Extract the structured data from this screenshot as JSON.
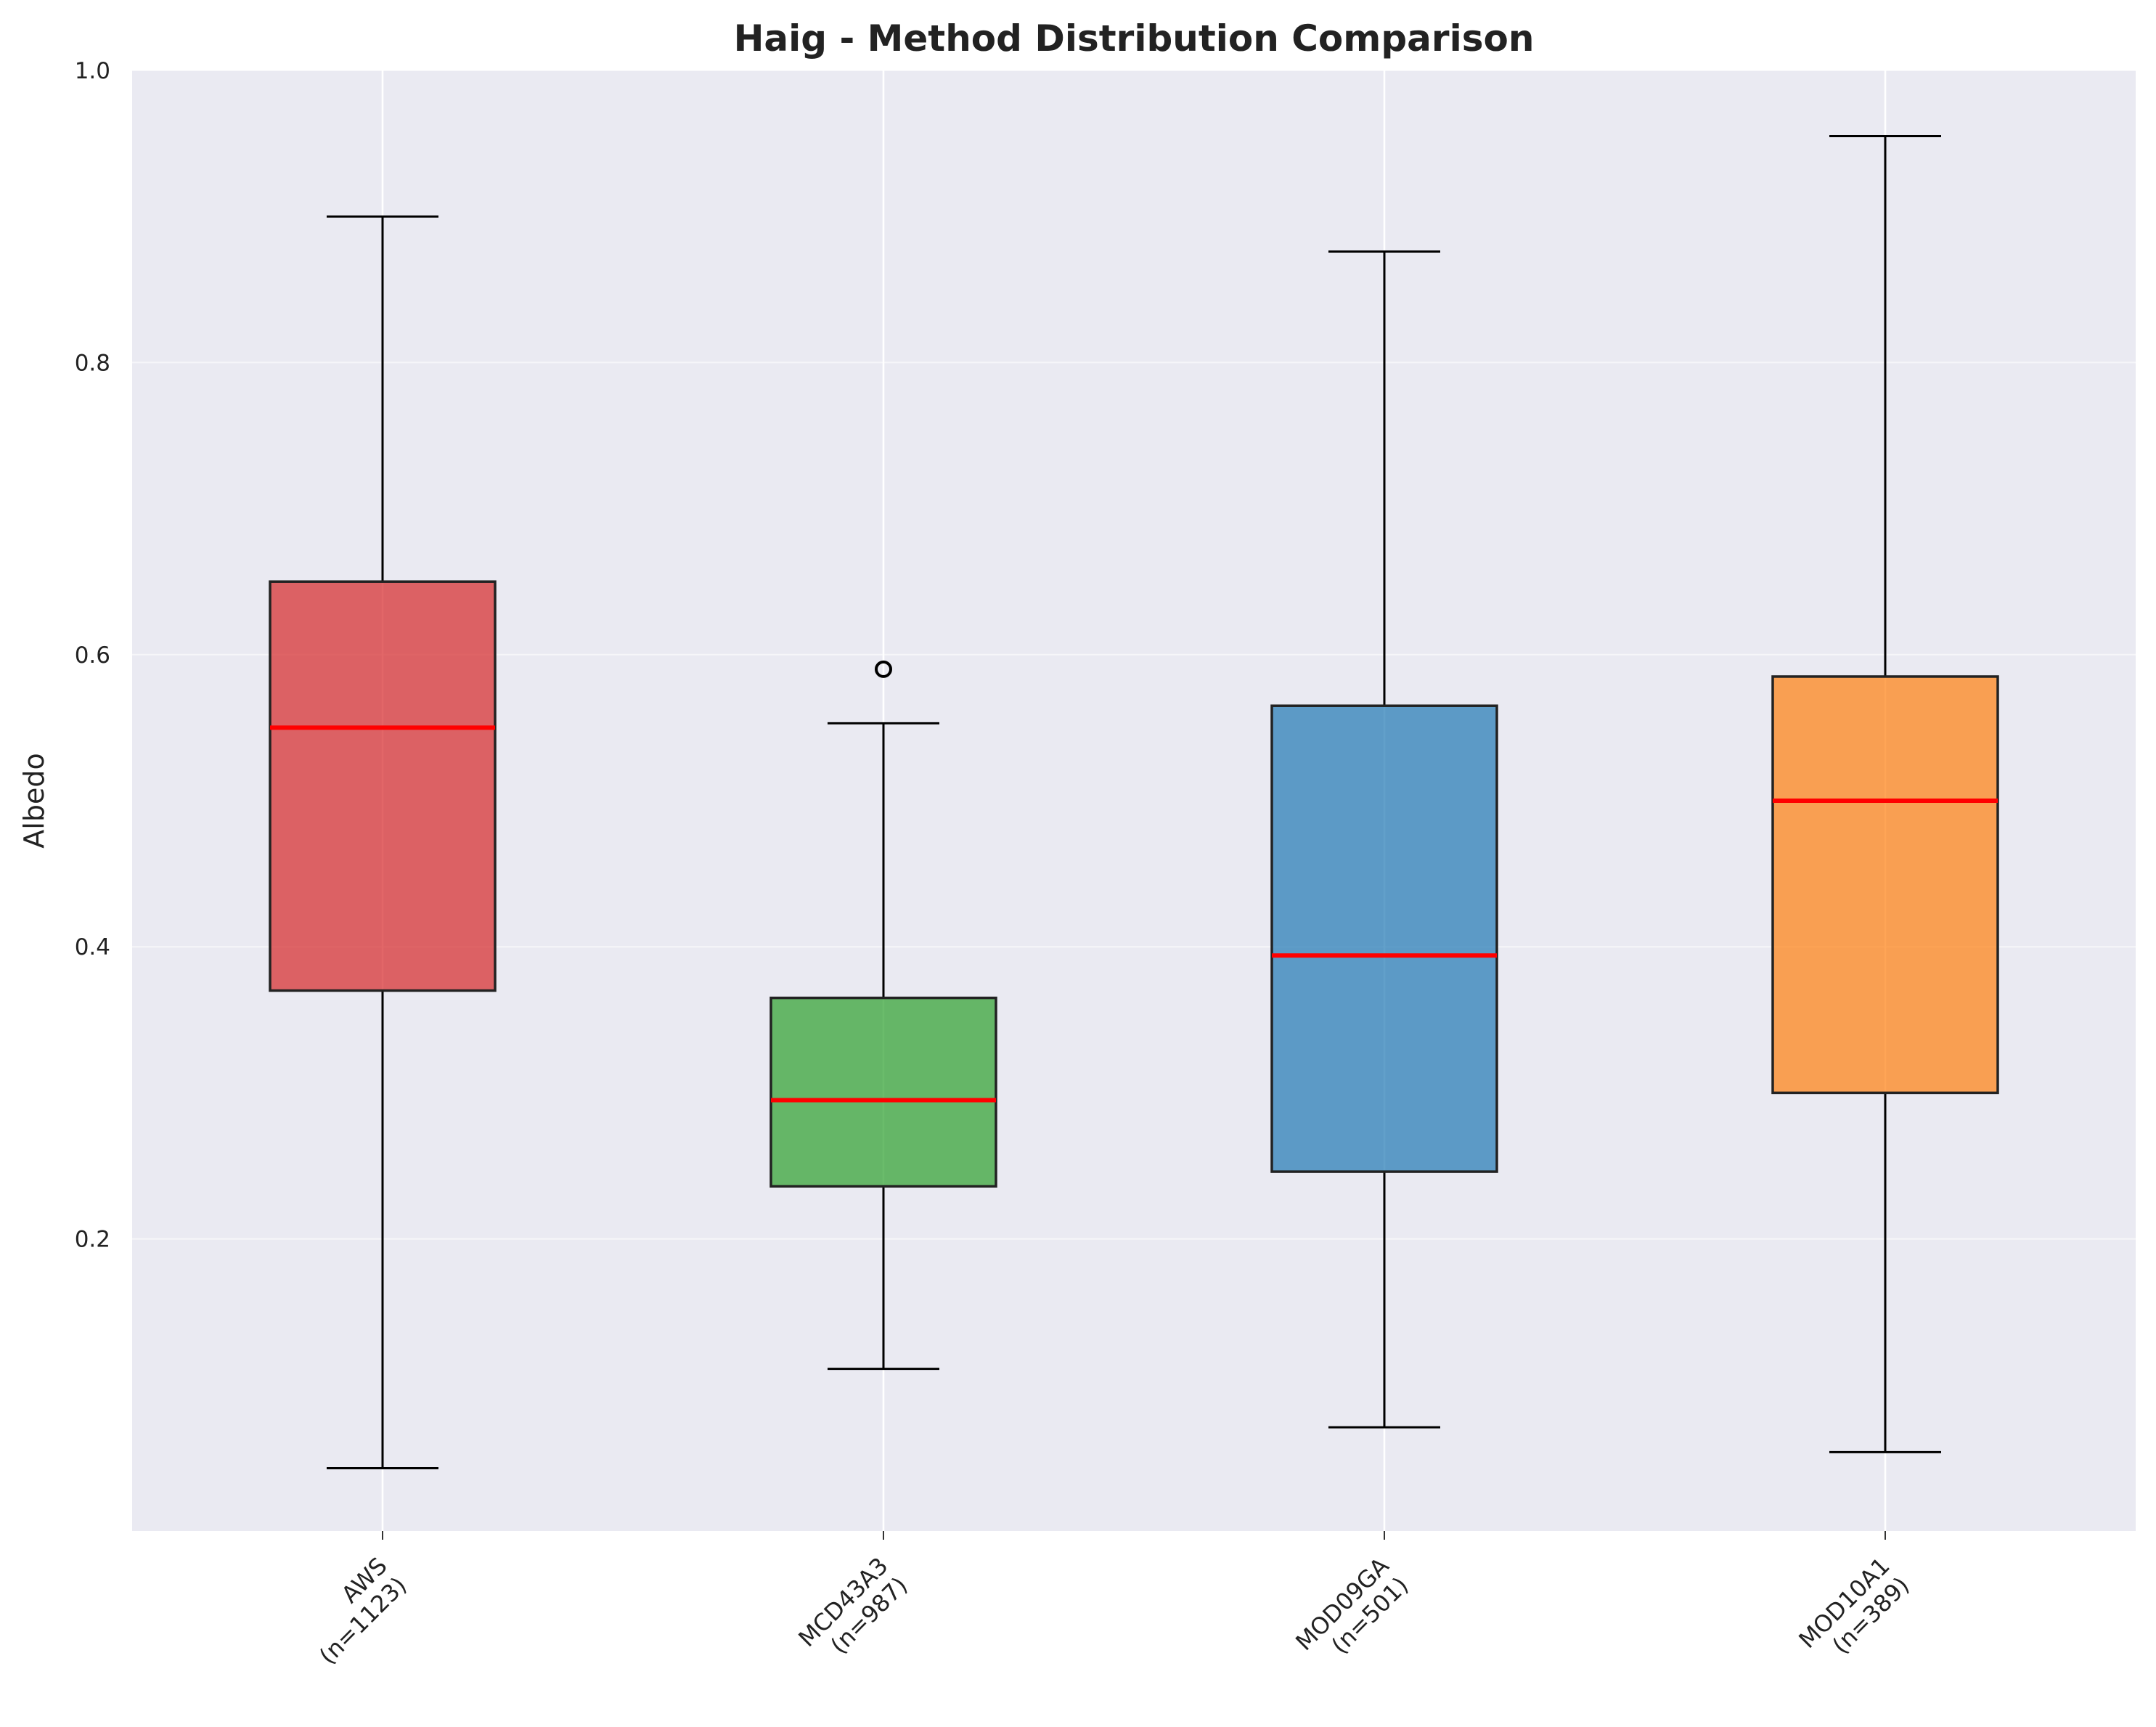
{
  "chart_data": {
    "type": "box",
    "title": "Haig - Method Distribution Comparison",
    "xlabel": "",
    "ylabel": "Albedo",
    "ylim": [
      0,
      1.0
    ],
    "yticks": [
      "0.2",
      "0.4",
      "0.6",
      "0.8",
      "1.0"
    ],
    "grid": true,
    "legend": "none",
    "categories": [
      {
        "line1": "AWS",
        "line2": "(n=1123)"
      },
      {
        "line1": "MCD43A3",
        "line2": "(n=987)"
      },
      {
        "line1": "MOD09GA",
        "line2": "(n=501)"
      },
      {
        "line1": "MOD10A1",
        "line2": "(n=389)"
      }
    ],
    "boxes": [
      {
        "whisker_low": 0.043,
        "q1": 0.37,
        "median": 0.55,
        "q3": 0.65,
        "whisker_high": 0.9,
        "outliers": [],
        "color": "#d62728"
      },
      {
        "whisker_low": 0.111,
        "q1": 0.236,
        "median": 0.295,
        "q3": 0.365,
        "whisker_high": 0.553,
        "outliers": [
          0.59
        ],
        "color": "#2ca02c"
      },
      {
        "whisker_low": 0.071,
        "q1": 0.246,
        "median": 0.394,
        "q3": 0.565,
        "whisker_high": 0.876,
        "outliers": [],
        "color": "#1f77b4"
      },
      {
        "whisker_low": 0.054,
        "q1": 0.3,
        "median": 0.5,
        "q3": 0.585,
        "whisker_high": 0.955,
        "outliers": [],
        "color": "#ff7f0e"
      }
    ],
    "median_color": "#ff0000",
    "background_color": "#eaeaf2"
  }
}
